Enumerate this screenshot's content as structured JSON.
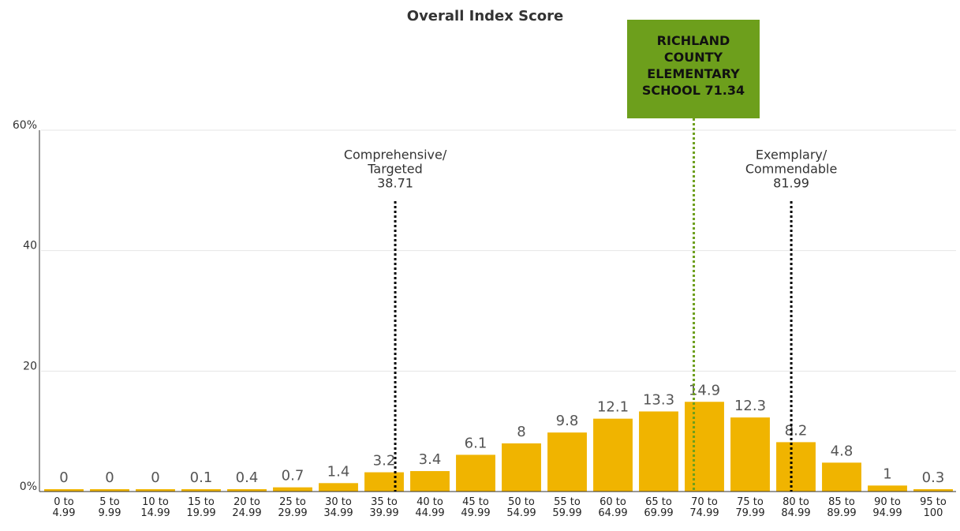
{
  "chart_data": {
    "type": "bar",
    "title": "Overall Index Score",
    "categories": [
      "0 to 4.99",
      "5 to 9.99",
      "10 to 14.99",
      "15 to 19.99",
      "20 to 24.99",
      "25 to 29.99",
      "30 to 34.99",
      "35 to 39.99",
      "40 to 44.99",
      "45 to 49.99",
      "50 to 54.99",
      "55 to 59.99",
      "60 to 64.99",
      "65 to 69.99",
      "70 to 74.99",
      "75 to 79.99",
      "80 to 84.99",
      "85 to 89.99",
      "90 to 94.99",
      "95 to 100"
    ],
    "values": [
      0,
      0,
      0,
      0.1,
      0.4,
      0.7,
      1.4,
      3.2,
      3.4,
      6.1,
      8,
      9.8,
      12.1,
      13.3,
      14.9,
      12.3,
      8.2,
      4.8,
      1,
      0.3
    ],
    "color": "#f0b400",
    "ylim": [
      0,
      60
    ],
    "yticks": [
      {
        "value": 0,
        "label": "0%"
      },
      20,
      40,
      {
        "value": 60,
        "label": "60%"
      }
    ],
    "xlim": [
      0,
      100
    ],
    "grid": true,
    "annotations": [
      {
        "lines": [
          "Comprehensive/",
          "Targeted"
        ],
        "value": 38.71,
        "color": "#000000"
      },
      {
        "lines": [
          "Exemplary/",
          "Commendable"
        ],
        "value": 81.99,
        "color": "#000000"
      }
    ],
    "highlight": {
      "lines": [
        "RICHLAND",
        "COUNTY",
        "ELEMENTARY",
        "SCHOOL"
      ],
      "value": 71.34,
      "color": "#6d9f1c"
    }
  }
}
